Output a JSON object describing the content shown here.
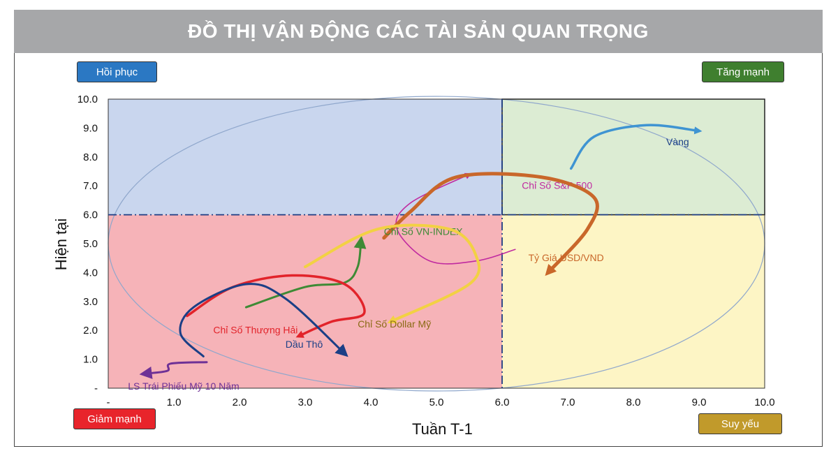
{
  "title": "ĐỒ THỊ VẬN ĐỘNG CÁC TÀI SẢN QUAN TRỌNG",
  "quadrants": {
    "top_left": {
      "label": "Hồi phục",
      "color": "#2b78c3"
    },
    "top_right": {
      "label": "Tăng mạnh",
      "color": "#3f7f2f"
    },
    "bottom_left": {
      "label": "Giảm mạnh",
      "color": "#e8242b"
    },
    "bottom_right": {
      "label": "Suy yếu",
      "color": "#c19a2b"
    }
  },
  "chart_data": {
    "type": "line",
    "xlabel": "Tuần T-1",
    "ylabel": "Hiện tại",
    "xlim": [
      0,
      10
    ],
    "ylim": [
      0,
      10
    ],
    "x_ticks": [
      "-",
      "1.0",
      "2.0",
      "3.0",
      "4.0",
      "5.0",
      "6.0",
      "7.0",
      "8.0",
      "9.0",
      "10.0"
    ],
    "y_ticks": [
      "-",
      "1.0",
      "2.0",
      "3.0",
      "4.0",
      "5.0",
      "6.0",
      "7.0",
      "8.0",
      "9.0",
      "10.0"
    ],
    "divider": {
      "x": 6.0,
      "y": 6.0
    },
    "region_colors": {
      "top_left": "#c9d6ee",
      "top_right": "#dcecd3",
      "bottom_left": "#f6b3b8",
      "bottom_right": "#fdf5c5"
    },
    "series": [
      {
        "name": "Vàng",
        "color": "#3f94d2",
        "width": 3.5,
        "label_pos": [
          8.5,
          8.4
        ],
        "points": [
          [
            7.05,
            7.6
          ],
          [
            7.4,
            8.7
          ],
          [
            8.2,
            9.1
          ],
          [
            9.0,
            8.9
          ]
        ]
      },
      {
        "name": "Chỉ Số S&P 500",
        "color": "#c02aa0",
        "width": 1.6,
        "label_pos": [
          6.3,
          6.9
        ],
        "points": [
          [
            6.2,
            4.8
          ],
          [
            5.6,
            4.4
          ],
          [
            4.9,
            4.4
          ],
          [
            4.4,
            5.5
          ],
          [
            4.6,
            6.4
          ],
          [
            5.5,
            7.4
          ]
        ]
      },
      {
        "name": "Tỷ Giá USD/VND",
        "color": "#c9672a",
        "width": 5,
        "label_pos": [
          6.4,
          4.4
        ],
        "points": [
          [
            4.2,
            5.2
          ],
          [
            4.6,
            6.1
          ],
          [
            5.3,
            7.3
          ],
          [
            6.6,
            7.3
          ],
          [
            7.4,
            6.6
          ],
          [
            7.3,
            5.5
          ],
          [
            6.7,
            4.0
          ]
        ]
      },
      {
        "name": "Chỉ Số VN-INDEX",
        "color": "#3e8a35",
        "width": 3,
        "label_pos": [
          4.2,
          5.3
        ],
        "points": [
          [
            2.1,
            2.8
          ],
          [
            3.0,
            3.5
          ],
          [
            3.6,
            3.65
          ],
          [
            3.8,
            4.2
          ],
          [
            3.85,
            5.1
          ]
        ]
      },
      {
        "name": "Chỉ Số Dollar Mỹ",
        "color": "#f2d143",
        "width": 4,
        "label_pos": [
          3.8,
          2.1
        ],
        "points": [
          [
            3.0,
            4.2
          ],
          [
            4.1,
            5.5
          ],
          [
            5.2,
            5.5
          ],
          [
            5.6,
            4.6
          ],
          [
            5.5,
            3.6
          ],
          [
            4.3,
            2.3
          ]
        ]
      },
      {
        "name": "Chỉ Số Thượng Hải",
        "color": "#e2232a",
        "width": 3.5,
        "label_pos": [
          1.6,
          1.9
        ],
        "points": [
          [
            1.2,
            2.5
          ],
          [
            1.9,
            3.5
          ],
          [
            2.8,
            3.9
          ],
          [
            3.6,
            3.6
          ],
          [
            3.9,
            2.6
          ],
          [
            3.4,
            2.3
          ],
          [
            2.9,
            1.8
          ]
        ]
      },
      {
        "name": "Dầu Thô",
        "color": "#1b3f86",
        "width": 3,
        "label_pos": [
          2.7,
          1.4
        ],
        "points": [
          [
            1.45,
            1.1
          ],
          [
            1.1,
            1.9
          ],
          [
            1.3,
            2.8
          ],
          [
            2.1,
            3.6
          ],
          [
            2.7,
            3.1
          ],
          [
            3.6,
            1.2
          ]
        ]
      },
      {
        "name": "LS Trái Phiếu Mỹ 10 Năm",
        "color": "#6e3196",
        "width": 3,
        "label_pos": [
          0.3,
          -0.05
        ],
        "points": [
          [
            1.5,
            0.9
          ],
          [
            0.95,
            0.85
          ],
          [
            0.9,
            0.6
          ],
          [
            0.55,
            0.5
          ]
        ]
      }
    ]
  }
}
